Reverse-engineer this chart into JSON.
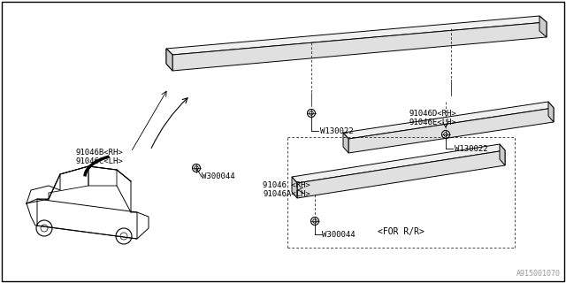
{
  "bg_color": "#ffffff",
  "border_color": "#000000",
  "line_color": "#000000",
  "text_color": "#000000",
  "diagram_id": "A915001070",
  "font_size": 6.5,
  "labels": {
    "part_B_C_1": "91046B<RH>",
    "part_B_C_2": "91046C<LH>",
    "part_D_E_1": "91046D<RH>",
    "part_D_E_2": "91046E<LH>",
    "part_main_1": "91046 <RH>",
    "part_main_2": "91046A<LH>",
    "w300044_left": "W300044",
    "w130022_top": "W130022",
    "w130022_bot": "W130022",
    "w300044_center": "W300044",
    "for_rr": "<FOR R/R>"
  }
}
